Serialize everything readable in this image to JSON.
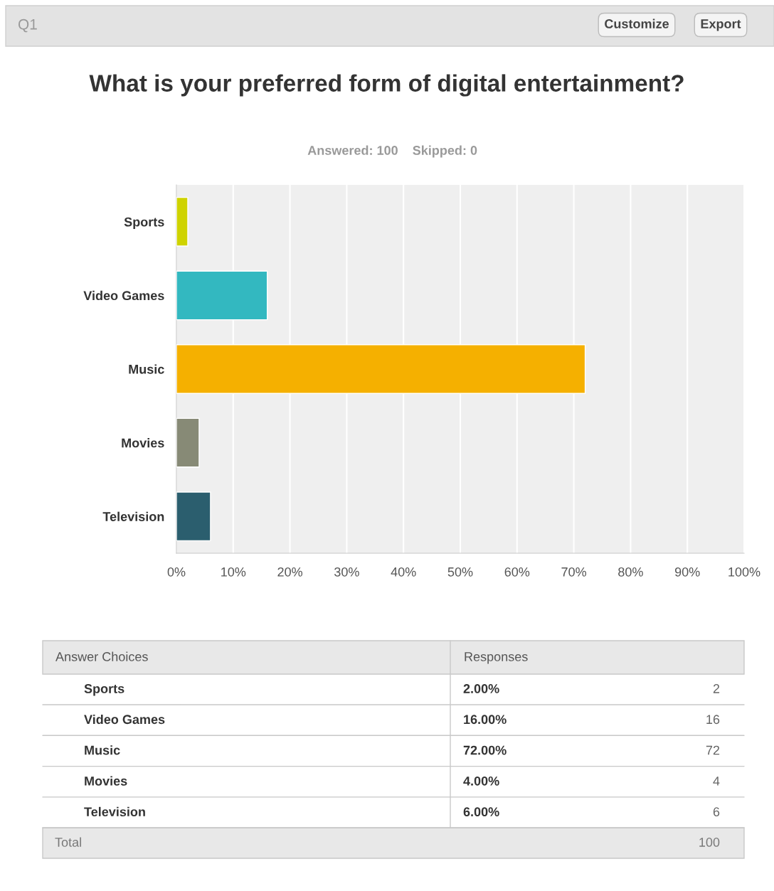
{
  "chart_data": {
    "type": "bar",
    "orientation": "horizontal",
    "title": "What is your preferred form of digital entertainment?",
    "subtitle": "Answered: 100    Skipped: 0",
    "categories": [
      "Sports",
      "Video Games",
      "Music",
      "Movies",
      "Television"
    ],
    "values": [
      2,
      16,
      72,
      4,
      6
    ],
    "colors": [
      "#cfd300",
      "#33b8c0",
      "#f5b000",
      "#878a76",
      "#2b5e6e"
    ],
    "xlim": [
      0,
      100
    ],
    "xticks": [
      {
        "value": 0,
        "label": "0%"
      },
      {
        "value": 10,
        "label": "10%"
      },
      {
        "value": 20,
        "label": "20%"
      },
      {
        "value": 30,
        "label": "30%"
      },
      {
        "value": 40,
        "label": "40%"
      },
      {
        "value": 50,
        "label": "50%"
      },
      {
        "value": 60,
        "label": "60%"
      },
      {
        "value": 70,
        "label": "70%"
      },
      {
        "value": 80,
        "label": "80%"
      },
      {
        "value": 90,
        "label": "90%"
      },
      {
        "value": 100,
        "label": "100%"
      }
    ],
    "grid": "x",
    "annotations": [
      "Q1",
      "Customize",
      "Export",
      "Answer Choices",
      "Responses",
      "Total",
      "100",
      "2.00%",
      "2",
      "16.00%",
      "16",
      "72.00%",
      "72",
      "4.00%",
      "4",
      "6.00%",
      "6"
    ]
  }
}
